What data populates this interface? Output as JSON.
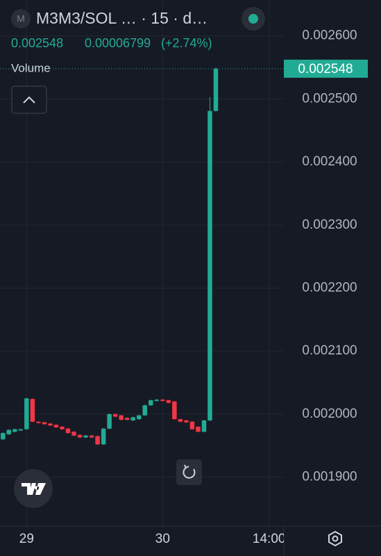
{
  "chart_data": {
    "type": "candlestick",
    "icon_letter": "M",
    "title": "M3M3/SOL … · 15 · d…",
    "change": 6.799e-05,
    "change_pct": {
      "value": 2.74,
      "label": "(+2.74%)"
    },
    "volume_label": "Volume",
    "up_color": "#22ab94",
    "down_color": "#f23645",
    "grid": true,
    "categories": [
      null,
      null,
      null,
      null,
      "29",
      null,
      null,
      null,
      null,
      null,
      null,
      null,
      null,
      null,
      null,
      null,
      null,
      null,
      null,
      null,
      null,
      null,
      null,
      null,
      null,
      null,
      null,
      "30",
      null,
      null,
      null,
      null,
      null,
      null,
      null,
      null,
      null,
      null,
      null,
      null,
      null,
      null,
      null,
      null,
      null,
      "14:00",
      null,
      null
    ],
    "open": [
      0.00196,
      0.001968,
      0.001972,
      0.001974,
      0.001976,
      0.002024,
      0.001988,
      0.001987,
      0.001985,
      0.001983,
      0.00198,
      0.001977,
      0.001972,
      0.001967,
      0.001963,
      0.001966,
      0.001965,
      0.001952,
      0.001977,
      0.002,
      0.001998,
      0.001994,
      0.00199,
      0.001992,
      0.001998,
      0.002014,
      0.002021,
      0.002023,
      0.002022,
      0.00202,
      0.001992,
      0.00199,
      0.001988,
      0.00198,
      0.001972,
      0.00199,
      0.002481,
      null,
      null,
      null,
      null,
      null,
      null,
      null,
      null,
      null,
      null,
      null
    ],
    "high": [
      0.001971,
      0.001976,
      0.001977,
      0.001977,
      0.002026,
      0.002025,
      0.001989,
      0.001988,
      0.001986,
      0.001984,
      0.001981,
      0.001978,
      0.001973,
      0.001968,
      0.001967,
      0.001967,
      0.001966,
      0.001978,
      0.002001,
      0.002001,
      0.001999,
      0.001995,
      0.001996,
      0.001999,
      0.002015,
      0.002023,
      0.002024,
      0.002024,
      0.002023,
      0.002021,
      0.001993,
      0.001991,
      0.001989,
      0.001981,
      0.001991,
      0.002503,
      0.00255,
      null,
      null,
      null,
      null,
      null,
      null,
      null,
      null,
      null,
      null,
      null
    ],
    "low": [
      0.001959,
      0.001967,
      0.001971,
      0.001973,
      0.001975,
      0.001987,
      0.001985,
      0.001983,
      0.001981,
      0.001978,
      0.001975,
      0.001969,
      0.001965,
      0.001962,
      0.001962,
      0.001962,
      0.001951,
      0.001951,
      0.001976,
      0.001995,
      0.00199,
      0.00199,
      0.001989,
      0.001991,
      0.001997,
      0.002013,
      0.00202,
      0.00202,
      0.002017,
      0.001991,
      0.001987,
      0.001986,
      0.001975,
      0.001971,
      0.001971,
      0.001989,
      0.00248,
      null,
      null,
      null,
      null,
      null,
      null,
      null,
      null,
      null,
      null,
      null
    ],
    "close": [
      0.00197,
      0.001975,
      0.001976,
      0.001976,
      0.002025,
      0.001988,
      0.001986,
      0.001984,
      0.001982,
      0.001979,
      0.001976,
      0.00197,
      0.001966,
      0.001963,
      0.001966,
      0.001963,
      0.001952,
      0.001977,
      0.002,
      0.001996,
      0.001991,
      0.001991,
      0.001995,
      0.001998,
      0.002014,
      0.002022,
      0.002023,
      0.002021,
      0.002018,
      0.001992,
      0.001988,
      0.001987,
      0.001976,
      0.001972,
      0.00199,
      0.002481,
      0.002548,
      null,
      null,
      null,
      null,
      null,
      null,
      null,
      null,
      null,
      null,
      null
    ],
    "ylim": [
      0.0018223,
      0.002657
    ],
    "yticks": [
      {
        "value": 0.0019,
        "label": "0.001900"
      },
      {
        "value": 0.002,
        "label": "0.002000"
      },
      {
        "value": 0.0021,
        "label": "0.002100"
      },
      {
        "value": 0.0022,
        "label": "0.002200"
      },
      {
        "value": 0.0023,
        "label": "0.002300"
      },
      {
        "value": 0.0024,
        "label": "0.002400"
      },
      {
        "value": 0.0025,
        "label": "0.002500"
      },
      {
        "value": 0.0026,
        "label": "0.002600"
      }
    ]
  }
}
